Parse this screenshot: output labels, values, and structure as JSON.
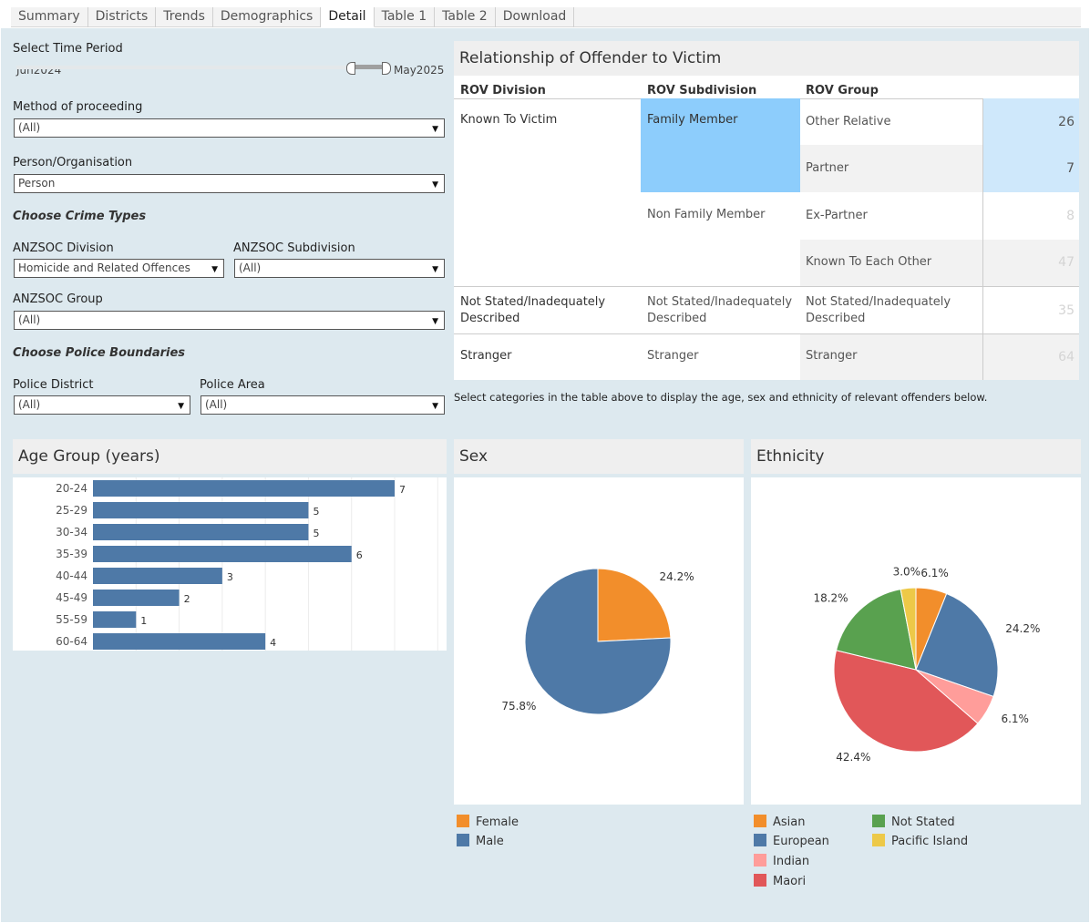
{
  "tabs": [
    "Summary",
    "Districts",
    "Trends",
    "Demographics",
    "Detail",
    "Table 1",
    "Table 2",
    "Download"
  ],
  "active_tab": "Detail",
  "filters": {
    "time_period_label": "Select Time Period",
    "time_start": "Jun2024",
    "time_end": "May2025",
    "method_label": "Method of proceeding",
    "method_value": "(All)",
    "person_label": "Person/Organisation",
    "person_value": "Person",
    "crime_types_heading": "Choose Crime Types",
    "anzsoc_division_label": "ANZSOC Division",
    "anzsoc_division_value": "Homicide and Related Offences",
    "anzsoc_subdivision_label": "ANZSOC Subdivision",
    "anzsoc_subdivision_value": "(All)",
    "anzsoc_group_label": "ANZSOC Group",
    "anzsoc_group_value": "(All)",
    "police_heading": "Choose Police Boundaries",
    "district_label": "Police District",
    "district_value": "(All)",
    "area_label": "Police Area",
    "area_value": "(All)"
  },
  "rov": {
    "title": "Relationship of Offender to Victim",
    "col_division": "ROV Division",
    "col_subdivision": "ROV Subdivision",
    "col_group": "ROV Group",
    "division_known": "Known To Victim",
    "sub_family": "Family Member",
    "group_other_relative": "Other Relative",
    "val_other_relative": "26",
    "group_partner": "Partner",
    "val_partner": "7",
    "sub_non_family": "Non Family Member",
    "group_ex_partner": "Ex-Partner",
    "val_ex_partner": "8",
    "group_known_each": "Known To Each Other",
    "val_known_each": "47",
    "division_not_stated_1": "Not Stated/Inadequately",
    "division_not_stated_2": "Described",
    "sub_not_stated_1": "Not Stated/Inadequately",
    "sub_not_stated_2": "Described",
    "group_not_stated_1": "Not Stated/Inadequately",
    "group_not_stated_2": "Described",
    "val_not_stated": "35",
    "division_stranger": "Stranger",
    "sub_stranger": "Stranger",
    "group_stranger": "Stranger",
    "val_stranger": "64",
    "instruction": "Select categories in the  table above to display the age, sex and ethnicity of relevant offenders below.",
    "highlight_color": "#8dcdfc",
    "selected_value_color": "#cfe8fb"
  },
  "age_panel_title": "Age Group (years)",
  "sex_panel_title": "Sex",
  "ethnicity_panel_title": "Ethnicity",
  "chart_data": [
    {
      "type": "bar",
      "categories": [
        "20-24",
        "25-29",
        "30-34",
        "35-39",
        "40-44",
        "45-49",
        "55-59",
        "60-64"
      ],
      "values": [
        7,
        5,
        5,
        6,
        3,
        2,
        1,
        4
      ],
      "xlim": [
        0,
        8
      ],
      "color": "#4e79a7",
      "grid": true
    },
    {
      "type": "pie",
      "labels": [
        "Female",
        "Male"
      ],
      "values": [
        24.2,
        75.8
      ],
      "value_labels": [
        "24.2%",
        "75.8%"
      ],
      "colors": [
        "#f28e2b",
        "#4e79a7"
      ]
    },
    {
      "type": "pie",
      "labels": [
        "Asian",
        "European",
        "Indian",
        "Maori",
        "Not Stated",
        "Pacific Island"
      ],
      "values": [
        6.1,
        24.2,
        6.1,
        42.4,
        18.2,
        3.0
      ],
      "value_labels": [
        "6.1%",
        "24.2%",
        "6.1%",
        "42.4%",
        "18.2%",
        "3.0%"
      ],
      "colors": [
        "#f28e2b",
        "#4e79a7",
        "#ff9d9a",
        "#e15759",
        "#59a14f",
        "#edc948"
      ]
    }
  ],
  "sex_legend": [
    {
      "label": "Female",
      "color": "#f28e2b"
    },
    {
      "label": "Male",
      "color": "#4e79a7"
    }
  ],
  "ethnicity_legend": [
    {
      "label": "Asian",
      "color": "#f28e2b"
    },
    {
      "label": "European",
      "color": "#4e79a7"
    },
    {
      "label": "Indian",
      "color": "#ff9d9a"
    },
    {
      "label": "Maori",
      "color": "#e15759"
    },
    {
      "label": "Not Stated",
      "color": "#59a14f"
    },
    {
      "label": "Pacific Island",
      "color": "#edc948"
    }
  ]
}
